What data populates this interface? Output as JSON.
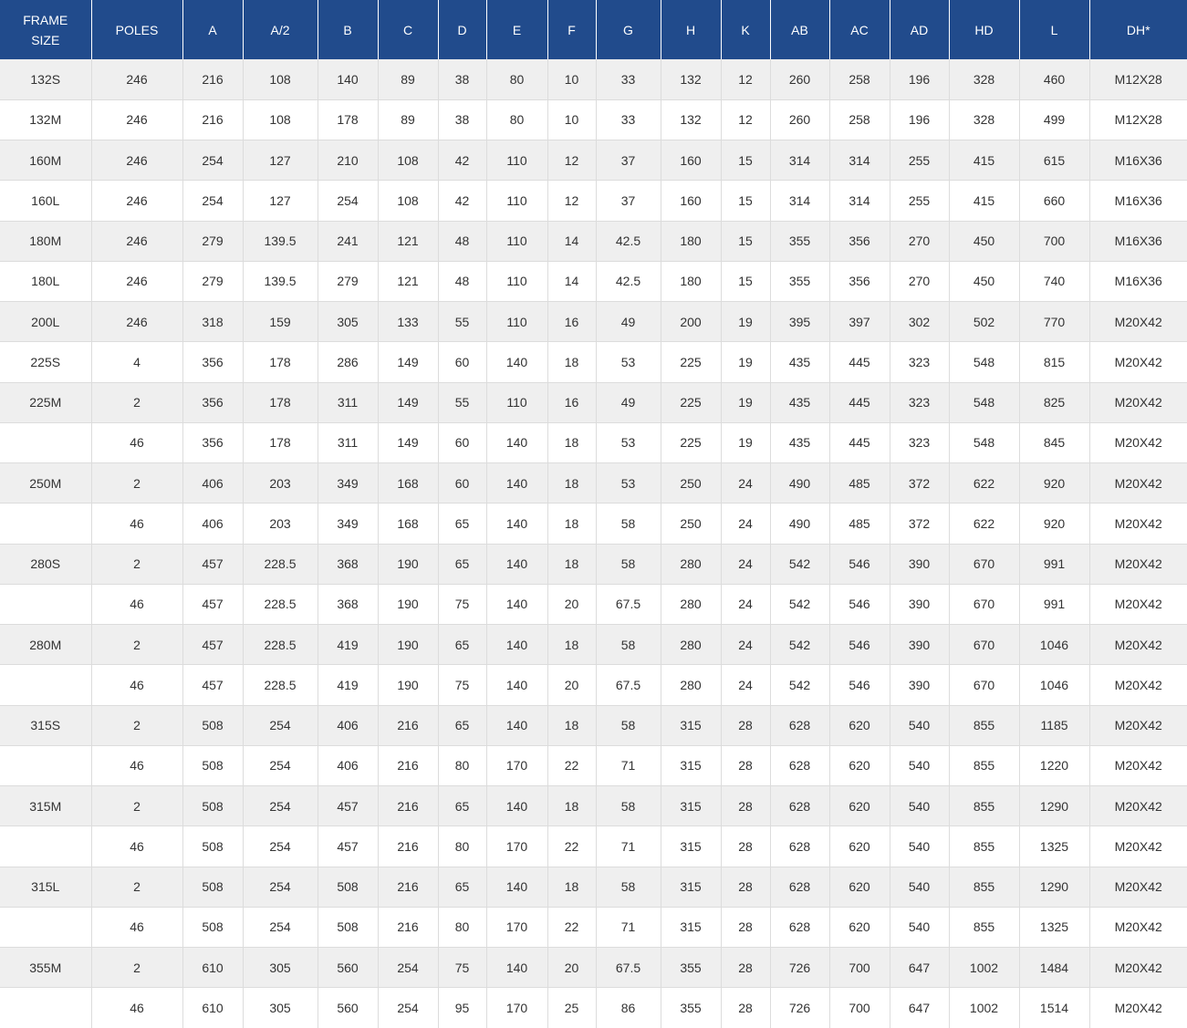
{
  "table": {
    "header": [
      "FRAME SIZE",
      "POLES",
      "A",
      "A/2",
      "B",
      "C",
      "D",
      "E",
      "F",
      "G",
      "H",
      "K",
      "AB",
      "AC",
      "AD",
      "HD",
      "L",
      "DH*"
    ],
    "rows": [
      [
        "132S",
        246,
        216,
        108,
        140,
        89,
        38,
        80,
        10,
        33,
        132,
        12,
        260,
        258,
        196,
        328,
        460,
        "M12X28"
      ],
      [
        "132M",
        246,
        216,
        108,
        178,
        89,
        38,
        80,
        10,
        33,
        132,
        12,
        260,
        258,
        196,
        328,
        499,
        "M12X28"
      ],
      [
        "160M",
        246,
        254,
        127,
        210,
        108,
        42,
        110,
        12,
        37,
        160,
        15,
        314,
        314,
        255,
        415,
        615,
        "M16X36"
      ],
      [
        "160L",
        246,
        254,
        127,
        254,
        108,
        42,
        110,
        12,
        37,
        160,
        15,
        314,
        314,
        255,
        415,
        660,
        "M16X36"
      ],
      [
        "180M",
        246,
        279,
        139.5,
        241,
        121,
        48,
        110,
        14,
        42.5,
        180,
        15,
        355,
        356,
        270,
        450,
        700,
        "M16X36"
      ],
      [
        "180L",
        246,
        279,
        139.5,
        279,
        121,
        48,
        110,
        14,
        42.5,
        180,
        15,
        355,
        356,
        270,
        450,
        740,
        "M16X36"
      ],
      [
        "200L",
        246,
        318,
        159,
        305,
        133,
        55,
        110,
        16,
        49,
        200,
        19,
        395,
        397,
        302,
        502,
        770,
        "M20X42"
      ],
      [
        "225S",
        4,
        356,
        178,
        286,
        149,
        60,
        140,
        18,
        53,
        225,
        19,
        435,
        445,
        323,
        548,
        815,
        "M20X42"
      ],
      [
        "225M",
        2,
        356,
        178,
        311,
        149,
        55,
        110,
        16,
        49,
        225,
        19,
        435,
        445,
        323,
        548,
        825,
        "M20X42"
      ],
      [
        null,
        46,
        356,
        178,
        311,
        149,
        60,
        140,
        18,
        53,
        225,
        19,
        435,
        445,
        323,
        548,
        845,
        "M20X42"
      ],
      [
        "250M",
        2,
        406,
        203,
        349,
        168,
        60,
        140,
        18,
        53,
        250,
        24,
        490,
        485,
        372,
        622,
        920,
        "M20X42"
      ],
      [
        null,
        46,
        406,
        203,
        349,
        168,
        65,
        140,
        18,
        58,
        250,
        24,
        490,
        485,
        372,
        622,
        920,
        "M20X42"
      ],
      [
        "280S",
        2,
        457,
        228.5,
        368,
        190,
        65,
        140,
        18,
        58,
        280,
        24,
        542,
        546,
        390,
        670,
        991,
        "M20X42"
      ],
      [
        null,
        46,
        457,
        228.5,
        368,
        190,
        75,
        140,
        20,
        67.5,
        280,
        24,
        542,
        546,
        390,
        670,
        991,
        "M20X42"
      ],
      [
        "280M",
        2,
        457,
        228.5,
        419,
        190,
        65,
        140,
        18,
        58,
        280,
        24,
        542,
        546,
        390,
        670,
        1046,
        "M20X42"
      ],
      [
        null,
        46,
        457,
        228.5,
        419,
        190,
        75,
        140,
        20,
        67.5,
        280,
        24,
        542,
        546,
        390,
        670,
        1046,
        "M20X42"
      ],
      [
        "315S",
        2,
        508,
        254,
        406,
        216,
        65,
        140,
        18,
        58,
        315,
        28,
        628,
        620,
        540,
        855,
        1185,
        "M20X42"
      ],
      [
        null,
        46,
        508,
        254,
        406,
        216,
        80,
        170,
        22,
        71,
        315,
        28,
        628,
        620,
        540,
        855,
        1220,
        "M20X42"
      ],
      [
        "315M",
        2,
        508,
        254,
        457,
        216,
        65,
        140,
        18,
        58,
        315,
        28,
        628,
        620,
        540,
        855,
        1290,
        "M20X42"
      ],
      [
        null,
        46,
        508,
        254,
        457,
        216,
        80,
        170,
        22,
        71,
        315,
        28,
        628,
        620,
        540,
        855,
        1325,
        "M20X42"
      ],
      [
        "315L",
        2,
        508,
        254,
        508,
        216,
        65,
        140,
        18,
        58,
        315,
        28,
        628,
        620,
        540,
        855,
        1290,
        "M20X42"
      ],
      [
        null,
        46,
        508,
        254,
        508,
        216,
        80,
        170,
        22,
        71,
        315,
        28,
        628,
        620,
        540,
        855,
        1325,
        "M20X42"
      ],
      [
        "355M",
        2,
        610,
        305,
        560,
        254,
        75,
        140,
        20,
        67.5,
        355,
        28,
        726,
        700,
        647,
        1002,
        1484,
        "M20X42"
      ],
      [
        null,
        46,
        610,
        305,
        560,
        254,
        95,
        170,
        25,
        86,
        355,
        28,
        726,
        700,
        647,
        1002,
        1514,
        "M20X42"
      ]
    ]
  }
}
